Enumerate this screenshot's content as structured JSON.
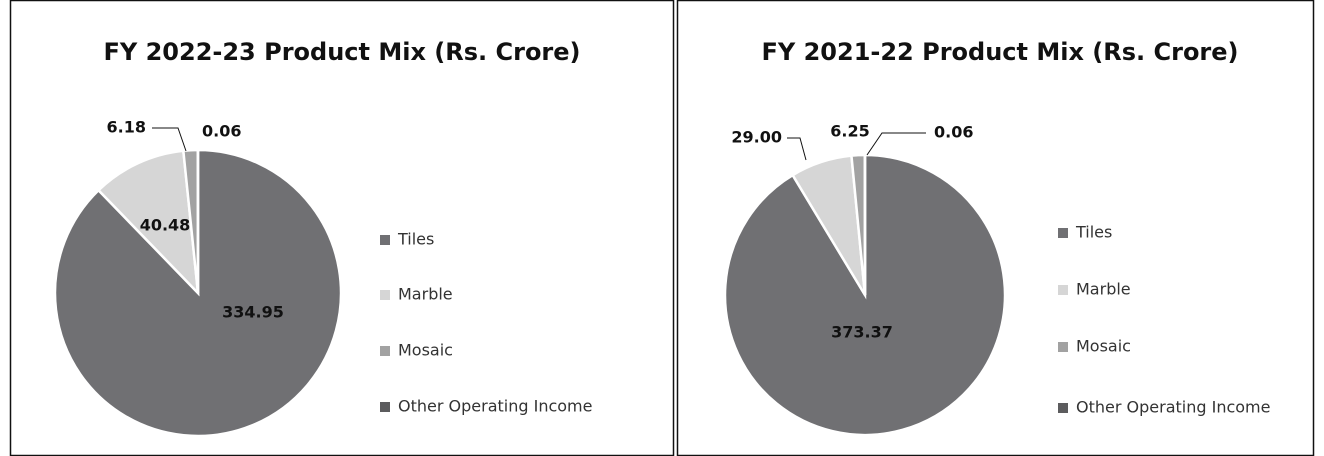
{
  "chart_data": [
    {
      "type": "pie",
      "title": "FY 2022-23 Product Mix (Rs. Crore)",
      "categories": [
        "Tiles",
        "Marble",
        "Mosaic",
        "Other Operating Income"
      ],
      "values": [
        334.95,
        40.48,
        6.18,
        0.06
      ],
      "colors": [
        "#707073",
        "#d6d6d6",
        "#a2a2a2",
        "#5c5c5e"
      ]
    },
    {
      "type": "pie",
      "title": "FY 2021-22 Product Mix (Rs. Crore)",
      "categories": [
        "Tiles",
        "Marble",
        "Mosaic",
        "Other Operating Income"
      ],
      "values": [
        373.37,
        29.0,
        6.25,
        0.06
      ],
      "value_labels": [
        "373.37",
        "29.00",
        "6.25",
        "0.06"
      ],
      "colors": [
        "#707073",
        "#d6d6d6",
        "#a2a2a2",
        "#5c5c5e"
      ]
    }
  ]
}
